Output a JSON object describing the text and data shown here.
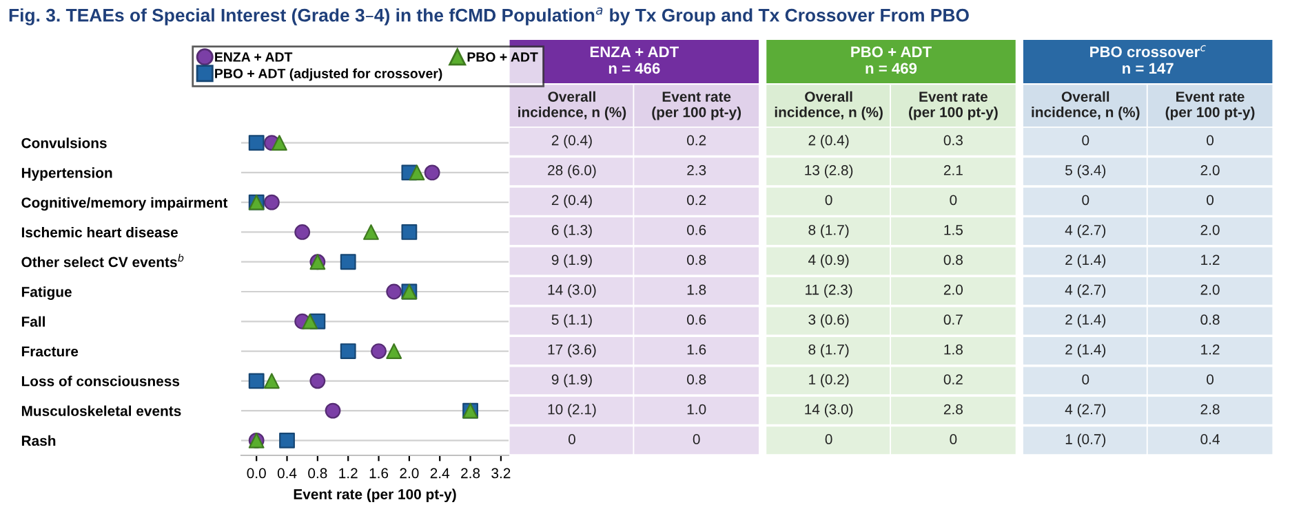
{
  "chart_data": [
    {
      "type": "scatter",
      "orientation": "horizontal",
      "title": "Fig. 3. TEAEs of Special Interest (Grade 3–4) in the fCMD Population$^{a}$ by Tx Group and Tx Crossover From PBO",
      "xlabel": "Event rate (per 100 pt-y)",
      "categories": [
        "Convulsions",
        "Hypertension",
        "Cognitive/memory impairment",
        "Ischemic heart disease",
        "Other select CV events$^{b}$",
        "Fatigue",
        "Fall",
        "Fracture",
        "Loss of consciousness",
        "Musculoskeletal events",
        "Rash"
      ],
      "series": [
        {
          "name": "ENZA + ADT",
          "color": "#7b3fa6",
          "marker": "circle",
          "values": [
            0.2,
            2.3,
            0.2,
            0.6,
            0.8,
            1.8,
            0.6,
            1.6,
            0.8,
            1.0,
            0
          ]
        },
        {
          "name": "PBO + ADT (adjusted for crossover)",
          "color": "#2166a6",
          "marker": "square",
          "values": [
            0,
            2.0,
            0,
            2.0,
            1.2,
            2.0,
            0.8,
            1.2,
            0,
            2.8,
            0.4
          ]
        },
        {
          "name": "PBO + ADT",
          "color": "#5aae2e",
          "marker": "triangle",
          "values": [
            0.3,
            2.1,
            0,
            1.5,
            0.8,
            2.0,
            0.7,
            1.8,
            0.2,
            2.8,
            0
          ]
        }
      ],
      "xlim": [
        -0.2,
        3.3
      ],
      "xticks": [
        {
          "value": 0,
          "label": "0.0"
        },
        0.4,
        0.8,
        1.2,
        1.6,
        {
          "value": 2,
          "label": "2.0"
        },
        2.4,
        2.8,
        3.2
      ],
      "grid": "y",
      "legend": "top left"
    },
    {
      "type": "other",
      "annotations": [
        "ENZA + ADT\nn = 466",
        "PBO + ADT\nn = 469",
        "PBO crossover$^{c}$\nn = 147"
      ],
      "colors": [
        "#e0d1ea",
        "#e0d1ea",
        "#dbedd3",
        "#dbedd3",
        "#d0deeb",
        "#d0deeb"
      ],
      "categories": [
        "Overall\nincidence, n (%)",
        "Event rate\n(per 100 pt-y)",
        "Overall\nincidence, n (%)",
        "Event rate\n(per 100 pt-y)",
        "Overall\nincidence, n (%)",
        "Event rate\n(per 100 pt-y)"
      ],
      "cell_labels": [
        [
          "2 (0.4)",
          "0.2",
          "2 (0.4)",
          "0.3",
          "0",
          "0"
        ],
        [
          "28 (6.0)",
          "2.3",
          "13 (2.8)",
          "2.1",
          "5 (3.4)",
          "2.0"
        ],
        [
          "2 (0.4)",
          "0.2",
          "0",
          "0",
          "0",
          "0"
        ],
        [
          "6 (1.3)",
          "0.6",
          "8 (1.7)",
          "1.5",
          "4 (2.7)",
          "2.0"
        ],
        [
          "9 (1.9)",
          "0.8",
          "4 (0.9)",
          "0.8",
          "2 (1.4)",
          "1.2"
        ],
        [
          "14 (3.0)",
          "1.8",
          "11 (2.3)",
          "2.0",
          "4 (2.7)",
          "2.0"
        ],
        [
          "5 (1.1)",
          "0.6",
          "3 (0.6)",
          "0.7",
          "2 (1.4)",
          "0.8"
        ],
        [
          "17 (3.6)",
          "1.6",
          "8 (1.7)",
          "1.8",
          "2 (1.4)",
          "1.2"
        ],
        [
          "9 (1.9)",
          "0.8",
          "1 (0.2)",
          "0.2",
          "0",
          "0"
        ],
        [
          "10 (2.1)",
          "1.0",
          "14 (3.0)",
          "2.8",
          "4 (2.7)",
          "2.8"
        ],
        [
          "0",
          "0",
          "0",
          "0",
          "1 (0.7)",
          "0.4"
        ]
      ]
    }
  ]
}
